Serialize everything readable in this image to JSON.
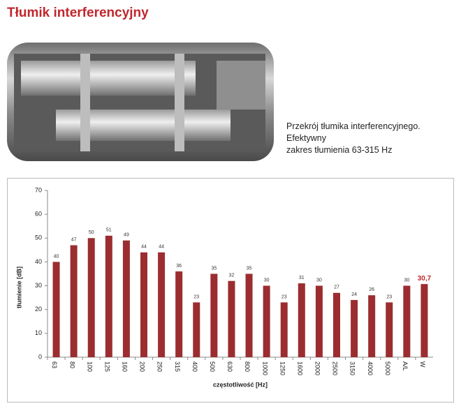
{
  "header": {
    "title": "Tłumik interferencyjny"
  },
  "caption": {
    "lines": [
      "Przekrój tłumika interferencyjnego. Efektywny",
      "zakres tłumienia 63-315 Hz"
    ]
  },
  "chart_data": {
    "type": "bar",
    "x_label": "częstotliwość [Hz]",
    "y_label": "tłumienie [dB]",
    "categories": [
      "63",
      "80",
      "100",
      "125",
      "160",
      "200",
      "250",
      "315",
      "400",
      "500",
      "630",
      "800",
      "1000",
      "1250",
      "1600",
      "2000",
      "2500",
      "3150",
      "4000",
      "5000",
      "A/L",
      "W"
    ],
    "values": [
      40,
      47,
      50,
      51,
      49,
      44,
      44,
      36,
      23,
      35,
      32,
      35,
      30,
      23,
      31,
      30,
      27,
      24,
      26,
      23,
      30,
      30.7
    ],
    "value_labels": [
      "40",
      "47",
      "50",
      "51",
      "49",
      "44",
      "44",
      "36",
      "23",
      "35",
      "32",
      "35",
      "30",
      "23",
      "31",
      "30",
      "27",
      "24",
      "26",
      "23",
      "30",
      "30,7"
    ],
    "value_label_colors": [
      "#333",
      "#333",
      "#333",
      "#333",
      "#333",
      "#333",
      "#333",
      "#333",
      "#333",
      "#333",
      "#333",
      "#333",
      "#333",
      "#333",
      "#333",
      "#333",
      "#333",
      "#333",
      "#333",
      "#333",
      "#333",
      "#c0272d"
    ],
    "color": "#9b2d30",
    "ylim": [
      0,
      70
    ],
    "yticks": [
      0,
      10,
      20,
      30,
      40,
      50,
      60,
      70
    ],
    "grid": false
  }
}
